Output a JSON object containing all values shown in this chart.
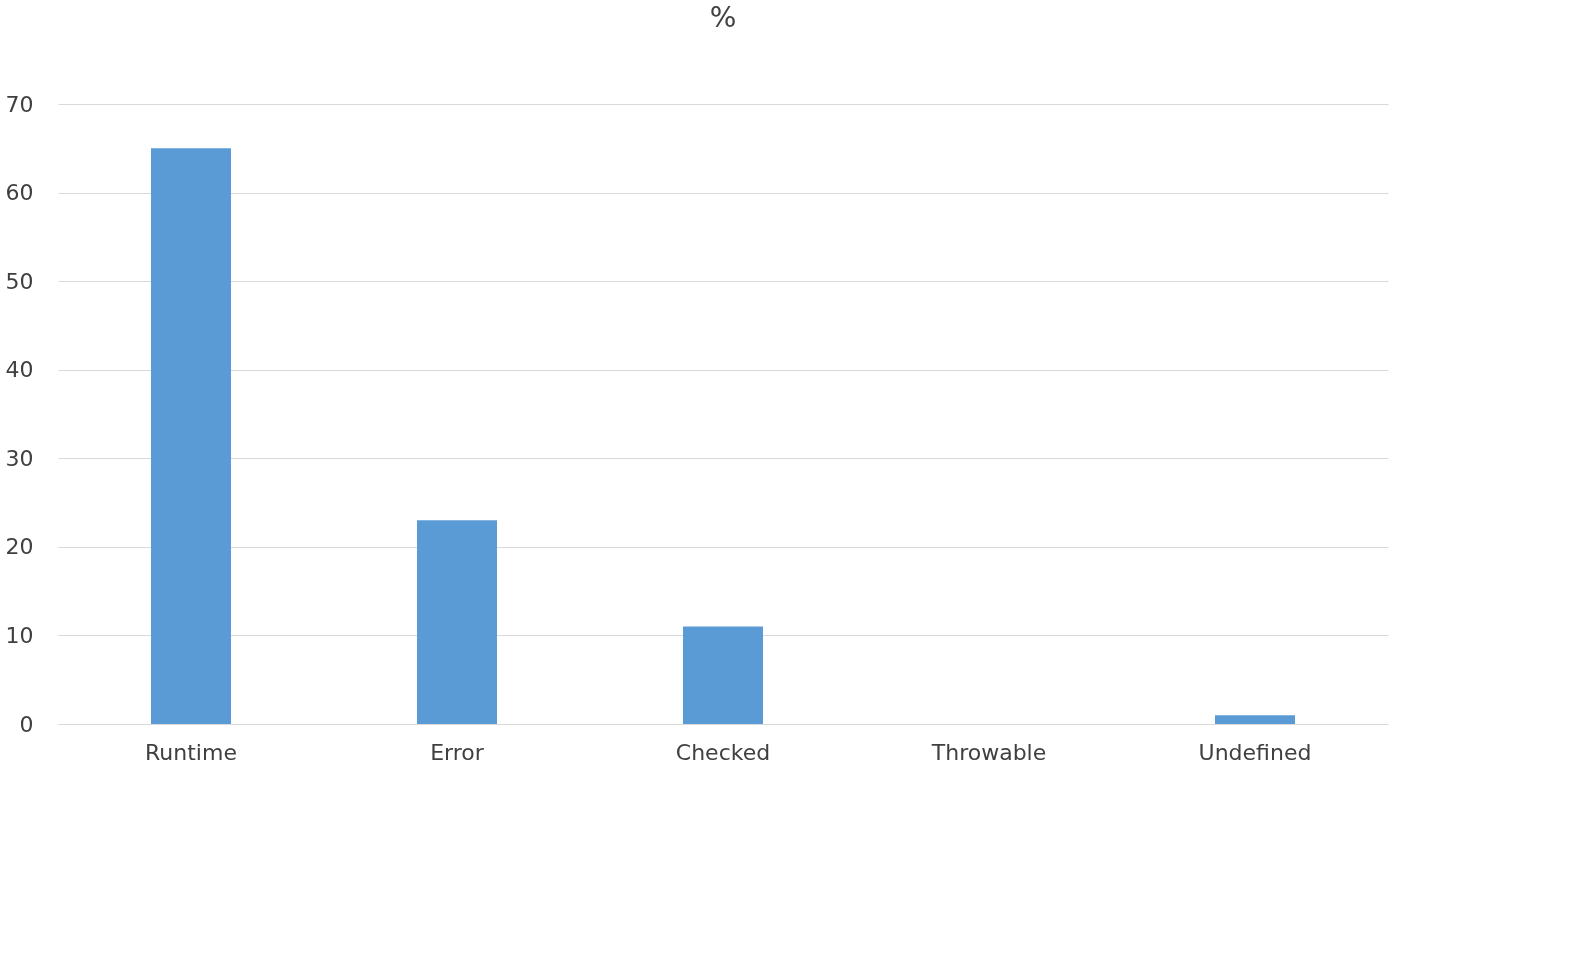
{
  "chart_data": {
    "type": "bar",
    "title": "%",
    "categories": [
      "Runtime",
      "Error",
      "Checked",
      "Throwable",
      "Undefined"
    ],
    "series": [
      {
        "color": "#5b9bd5",
        "values": [
          65,
          23,
          11,
          0,
          1
        ]
      }
    ],
    "ylim": [
      0,
      70
    ],
    "yticks": [
      0,
      10,
      20,
      30,
      40,
      50,
      60,
      70
    ],
    "grid": "y",
    "legend": false
  }
}
